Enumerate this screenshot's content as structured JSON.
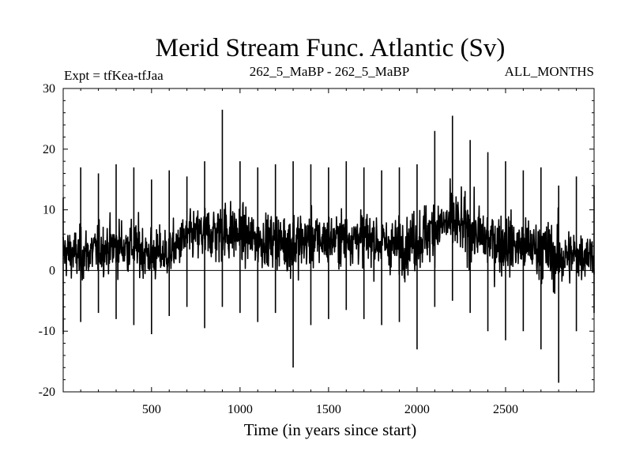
{
  "chart_data": {
    "type": "line",
    "title": "Merid Stream Func. Atlantic (Sv)",
    "subtitle_left": "Expt = tfKea-tfJaa",
    "subtitle_center": "262_5_MaBP - 262_5_MaBP",
    "subtitle_right": "ALL_MONTHS",
    "xlabel": "Time (in years since start)",
    "ylabel": "",
    "xlim": [
      1,
      3000
    ],
    "ylim": [
      -20,
      30
    ],
    "x_ticks": [
      500,
      1000,
      1500,
      2000,
      2500
    ],
    "y_ticks": [
      -20,
      -10,
      0,
      10,
      20,
      30
    ],
    "x_tick_labels": [
      "500",
      "1000",
      "1500",
      "2000",
      "2500"
    ],
    "y_tick_labels": [
      "-20",
      "-10",
      "0",
      "10",
      "20",
      "30"
    ],
    "grid": false,
    "zero_line": true,
    "line_color": "#000000",
    "series": [
      {
        "name": "",
        "x": [
          1,
          100,
          200,
          300,
          400,
          500,
          600,
          700,
          800,
          900,
          1000,
          1100,
          1200,
          1300,
          1400,
          1500,
          1600,
          1700,
          1800,
          1900,
          2000,
          2100,
          2200,
          2300,
          2400,
          2500,
          2600,
          2700,
          2800,
          2900,
          3000
        ],
        "values": [
          3.0,
          2.5,
          3.5,
          4.0,
          4.0,
          2.5,
          3.0,
          5.5,
          6.0,
          6.5,
          6.0,
          5.0,
          5.0,
          4.5,
          5.0,
          5.0,
          5.5,
          5.5,
          4.5,
          4.0,
          5.0,
          7.0,
          8.0,
          6.5,
          5.0,
          4.5,
          4.0,
          3.5,
          2.0,
          2.5,
          3.0
        ],
        "min": [
          -10.5,
          -8.5,
          -7.0,
          -8.0,
          -9.0,
          -10.5,
          -7.5,
          -6.0,
          -9.5,
          -6.0,
          -7.0,
          -8.5,
          -7.0,
          -16.0,
          -9.0,
          -8.0,
          -6.5,
          -8.0,
          -9.0,
          -8.5,
          -13.0,
          -6.0,
          -5.0,
          -7.0,
          -10.0,
          -11.5,
          -10.0,
          -13.0,
          -18.5,
          -10.0,
          -7.0
        ],
        "max": [
          12.0,
          17.0,
          16.0,
          17.5,
          17.0,
          15.0,
          16.5,
          15.5,
          18.0,
          26.5,
          18.0,
          17.0,
          17.5,
          18.0,
          17.5,
          17.0,
          18.0,
          17.0,
          16.5,
          17.0,
          17.5,
          23.0,
          25.5,
          21.5,
          19.5,
          18.0,
          16.5,
          17.0,
          14.0,
          15.5,
          14.0
        ]
      }
    ]
  }
}
